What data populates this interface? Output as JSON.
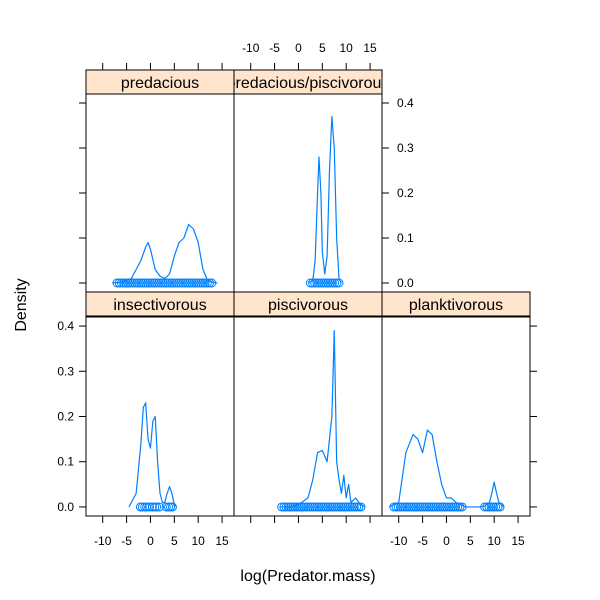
{
  "chart_data": {
    "type": "line",
    "subtype": "lattice-densityplot",
    "title": "",
    "xlabel": "log(Predator.mass)",
    "ylabel": "Density",
    "xlim": [
      -13.5,
      17.5
    ],
    "ylim": [
      -0.02,
      0.42
    ],
    "x_ticks": [
      -10,
      -5,
      0,
      5,
      10,
      15
    ],
    "y_ticks": [
      0.0,
      0.1,
      0.2,
      0.3,
      0.4
    ],
    "x_tick_labels": [
      "-10",
      "-5",
      "0",
      "5",
      "10",
      "15"
    ],
    "y_tick_labels": [
      "0.0",
      "0.1",
      "0.2",
      "0.3",
      "0.4"
    ],
    "layout": "3 columns x 2 rows, panels filled from bottom-left",
    "grid": false,
    "legend": "none",
    "colors": {
      "line": "#0080ff",
      "strip_bg": "#ffe5cc",
      "frame": "#000000"
    },
    "panels": [
      {
        "name": "insectivorous",
        "density_x": [
          -4.5,
          -3,
          -2,
          -1.5,
          -1,
          -0.5,
          0,
          0.5,
          1,
          1.5,
          2,
          2.5,
          3,
          3.5,
          4,
          4.5,
          5,
          5.5
        ],
        "density_y": [
          0.0,
          0.03,
          0.14,
          0.22,
          0.23,
          0.15,
          0.13,
          0.19,
          0.2,
          0.1,
          0.03,
          0.01,
          0.01,
          0.03,
          0.045,
          0.03,
          0.005,
          0.0
        ],
        "rug_points": [
          -2.1,
          -1.7,
          -1.2,
          -0.8,
          -0.2,
          0.4,
          0.9,
          1.3,
          1.9,
          3.3,
          3.8,
          4.2,
          4.6
        ]
      },
      {
        "name": "piscivorous",
        "density_x": [
          -4,
          -2,
          0,
          2,
          3,
          4,
          5,
          6,
          7,
          7.5,
          8,
          8.5,
          9,
          9.5,
          10,
          10.5,
          11,
          12,
          13,
          14
        ],
        "density_y": [
          0.0,
          0.0,
          0.005,
          0.02,
          0.06,
          0.12,
          0.125,
          0.1,
          0.2,
          0.39,
          0.1,
          0.06,
          0.03,
          0.07,
          0.02,
          0.05,
          0.01,
          0.02,
          0.005,
          0.0
        ],
        "rug_range": [
          -3.5,
          13.5
        ]
      },
      {
        "name": "planktivorous",
        "density_x": [
          -12,
          -10,
          -8.5,
          -7,
          -6,
          -5,
          -4,
          -3,
          -2,
          -1,
          0,
          1,
          2,
          3,
          4,
          5,
          6,
          7,
          8,
          9,
          9.5,
          10,
          10.5,
          11,
          12
        ],
        "density_y": [
          0.0,
          0.01,
          0.12,
          0.16,
          0.15,
          0.12,
          0.17,
          0.16,
          0.1,
          0.05,
          0.02,
          0.02,
          0.01,
          0.005,
          0.0,
          0.0,
          0.0,
          0.0,
          0.002,
          0.01,
          0.03,
          0.055,
          0.03,
          0.01,
          0.0
        ],
        "rug_range": [
          -11,
          3.5
        ],
        "rug_range_2": [
          8,
          11.5
        ]
      },
      {
        "name": "predacious",
        "density_x": [
          -8,
          -6,
          -4,
          -2,
          -1,
          -0.5,
          0,
          1,
          2,
          3,
          4,
          5,
          6,
          7,
          8,
          9,
          10,
          11,
          12,
          13,
          14
        ],
        "density_y": [
          0.0,
          0.002,
          0.01,
          0.05,
          0.08,
          0.09,
          0.075,
          0.03,
          0.015,
          0.01,
          0.02,
          0.06,
          0.09,
          0.1,
          0.13,
          0.12,
          0.09,
          0.03,
          0.005,
          0.002,
          0.0
        ],
        "rug_range": [
          -7,
          13
        ]
      },
      {
        "name": "predacious/piscivorous",
        "density_x": [
          2,
          3,
          3.5,
          4,
          4.3,
          4.7,
          5,
          5.5,
          6,
          6.5,
          7,
          7.5,
          8,
          8.5,
          9
        ],
        "density_y": [
          0.0,
          0.005,
          0.05,
          0.2,
          0.28,
          0.2,
          0.07,
          0.02,
          0.06,
          0.25,
          0.37,
          0.3,
          0.1,
          0.01,
          0.0
        ],
        "rug_range": [
          2.5,
          8.5
        ]
      }
    ]
  }
}
